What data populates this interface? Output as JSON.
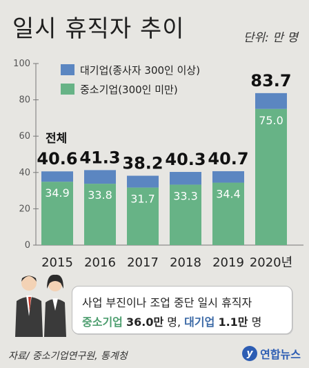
{
  "header": {
    "title": "일시 휴직자 추이",
    "unit": "단위: 만 명"
  },
  "legend": {
    "large": "대기업(종사자 300인 이상)",
    "sme": "중소기업(300인 미만)"
  },
  "total_label": "전체",
  "colors": {
    "large": "#5b86c1",
    "sme": "#67b386",
    "background": "#e7e6e2"
  },
  "chart_data": {
    "type": "bar",
    "stacked": true,
    "categories": [
      "2015",
      "2016",
      "2017",
      "2018",
      "2019",
      "2020년"
    ],
    "series": [
      {
        "name": "중소기업(300인 미만)",
        "values": [
          34.9,
          33.8,
          31.7,
          33.3,
          34.4,
          75.0
        ]
      },
      {
        "name": "대기업(종사자 300인 이상)",
        "values": [
          5.7,
          7.5,
          6.5,
          7.0,
          6.3,
          8.7
        ]
      }
    ],
    "sme_labels": [
      "34.9",
      "33.8",
      "31.7",
      "33.3",
      "34.4",
      "75.0"
    ],
    "totals": [
      40.6,
      41.3,
      38.2,
      40.3,
      40.7,
      83.7
    ],
    "total_labels": [
      "40.6",
      "41.3",
      "38.2",
      "40.3",
      "40.7",
      "83.7"
    ],
    "ylim": [
      0,
      100
    ],
    "yticks": [
      "0",
      "20",
      "40",
      "60",
      "80",
      "100"
    ],
    "grid": false,
    "legend_position": "top-left"
  },
  "callout": {
    "line1": "사업 부진이나 조업 중단 일시 휴직자",
    "sme_word": "중소기업",
    "sme_value": "36.0만",
    "sep": " 명, ",
    "large_word": "대기업",
    "large_value": "1.1만",
    "end": " 명"
  },
  "footer": {
    "source": "자료/ 중소기업연구원, 통계청",
    "logo_mark": "y",
    "logo_text": "연합뉴스"
  }
}
